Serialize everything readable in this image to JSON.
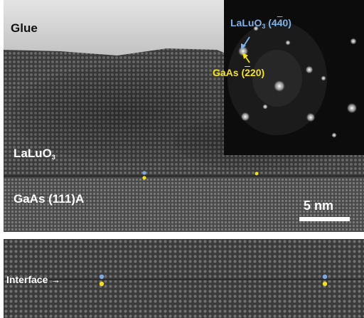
{
  "top_panel": {
    "label_glue": "Glue",
    "label_film_main": "LaLuO",
    "label_film_sub": "3",
    "label_substrate": "GaAs (111)A",
    "scale_bar": "5 nm",
    "inset": {
      "label_llo_main": "LaLuO",
      "label_llo_sub": "3",
      "label_llo_idx_a": " (4",
      "label_llo_idx_bar": "4",
      "label_llo_idx_b": "0)",
      "label_gaas_a": "GaAs (",
      "label_gaas_bar": "2",
      "label_gaas_b": "20)",
      "colors": {
        "llo": "#7fb2e8",
        "gaas": "#f2e21c"
      }
    }
  },
  "bottom_panel": {
    "label_interface": "Interface",
    "arrow": "→"
  },
  "colors": {
    "marker_blue": "#7fa8e0",
    "marker_yellow": "#f0e020"
  }
}
